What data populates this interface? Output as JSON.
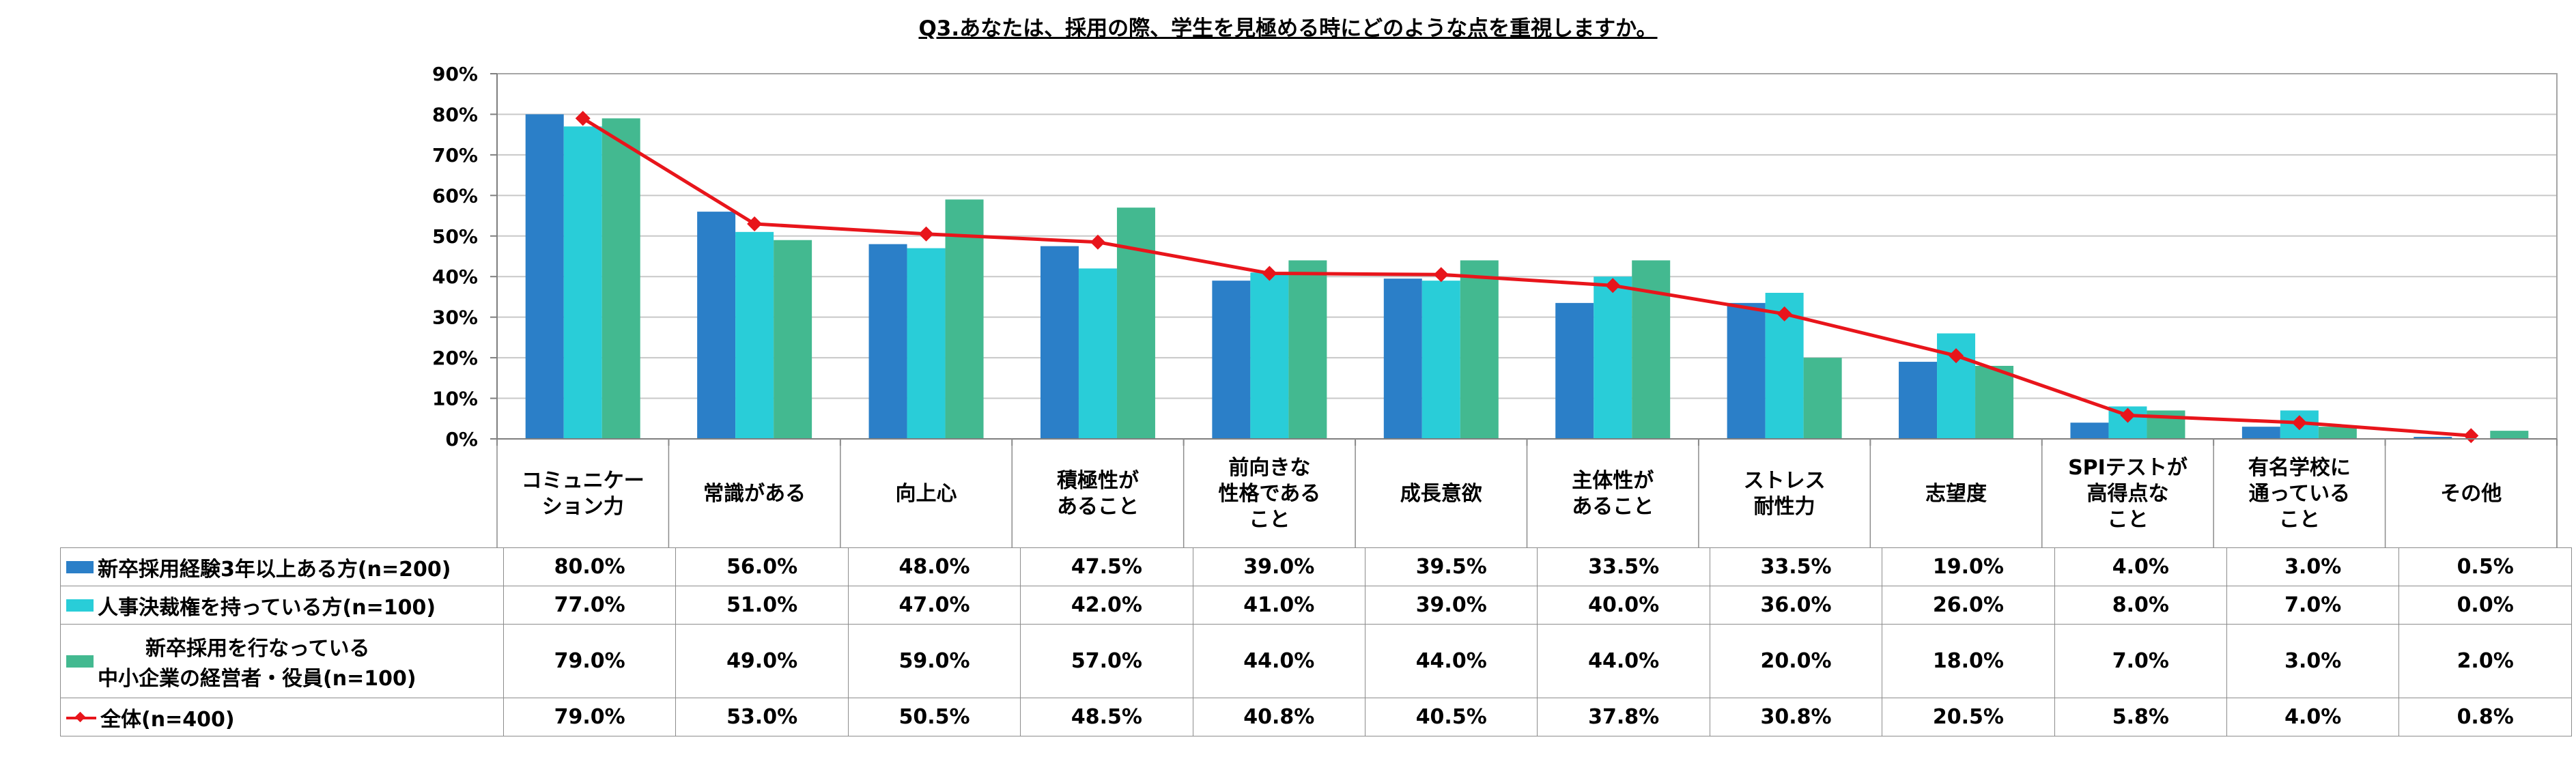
{
  "chart_data": {
    "type": "bar",
    "title": "Q3.あなたは、採用の際、学生を見極める時にどのような点を重視しますか。",
    "categories": [
      [
        "コミュニケー",
        "ション力"
      ],
      [
        "常識がある"
      ],
      [
        "向上心"
      ],
      [
        "積極性が",
        "あること"
      ],
      [
        "前向きな",
        "性格である",
        "こと"
      ],
      [
        "成長意欲"
      ],
      [
        "主体性が",
        "あること"
      ],
      [
        "ストレス",
        "耐性力"
      ],
      [
        "志望度"
      ],
      [
        "SPIテストが",
        "高得点な",
        "こと"
      ],
      [
        "有名学校に",
        "通っている",
        "こと"
      ],
      [
        "その他"
      ]
    ],
    "ylim": [
      0,
      90
    ],
    "yticks": [
      "0%",
      "10%",
      "20%",
      "30%",
      "40%",
      "50%",
      "60%",
      "70%",
      "80%",
      "90%"
    ],
    "grid": true,
    "legend_placement": "data-table",
    "series": [
      {
        "name": "新卒採用経験3年以上ある方(n=200)",
        "name_lines": [
          "新卒採用経験3年以上ある方(n=200)"
        ],
        "kind": "bar",
        "color": "#2b7fc8",
        "values": [
          80.0,
          56.0,
          48.0,
          47.5,
          39.0,
          39.5,
          33.5,
          33.5,
          19.0,
          4.0,
          3.0,
          0.5
        ],
        "labels": [
          "80.0%",
          "56.0%",
          "48.0%",
          "47.5%",
          "39.0%",
          "39.5%",
          "33.5%",
          "33.5%",
          "19.0%",
          "4.0%",
          "3.0%",
          "0.5%"
        ]
      },
      {
        "name": "人事決裁権を持っている方(n=100)",
        "name_lines": [
          "人事決裁権を持っている方(n=100)"
        ],
        "kind": "bar",
        "color": "#29cdd8",
        "values": [
          77.0,
          51.0,
          47.0,
          42.0,
          41.0,
          39.0,
          40.0,
          36.0,
          26.0,
          8.0,
          7.0,
          0.0
        ],
        "labels": [
          "77.0%",
          "51.0%",
          "47.0%",
          "42.0%",
          "41.0%",
          "39.0%",
          "40.0%",
          "36.0%",
          "26.0%",
          "8.0%",
          "7.0%",
          "0.0%"
        ]
      },
      {
        "name": "新卒採用を行なっている 中小企業の経営者・役員(n=100)",
        "name_lines": [
          "新卒採用を行なっている",
          "中小企業の経営者・役員(n=100)"
        ],
        "kind": "bar",
        "color": "#43b990",
        "values": [
          79.0,
          49.0,
          59.0,
          57.0,
          44.0,
          44.0,
          44.0,
          20.0,
          18.0,
          7.0,
          3.0,
          2.0
        ],
        "labels": [
          "79.0%",
          "49.0%",
          "59.0%",
          "57.0%",
          "44.0%",
          "44.0%",
          "44.0%",
          "20.0%",
          "18.0%",
          "7.0%",
          "3.0%",
          "2.0%"
        ]
      },
      {
        "name": "全体(n=400)",
        "name_lines": [
          "全体(n=400)"
        ],
        "kind": "line",
        "color": "#e8151b",
        "values": [
          79.0,
          53.0,
          50.5,
          48.5,
          40.8,
          40.5,
          37.8,
          30.8,
          20.5,
          5.8,
          4.0,
          0.8
        ],
        "labels": [
          "79.0%",
          "53.0%",
          "50.5%",
          "48.5%",
          "40.8%",
          "40.5%",
          "37.8%",
          "30.8%",
          "20.5%",
          "5.8%",
          "4.0%",
          "0.8%"
        ]
      }
    ]
  }
}
